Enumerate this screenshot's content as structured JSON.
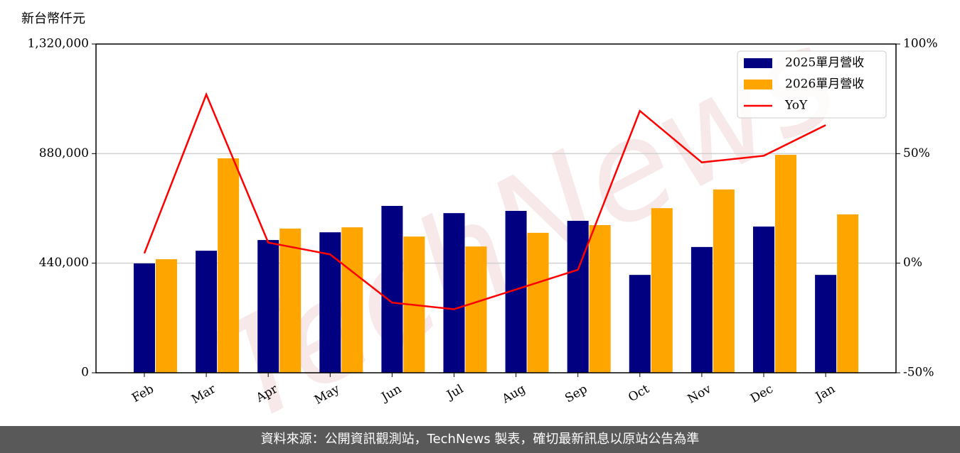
{
  "chart_data": {
    "type": "bar-line",
    "y_label": "新台幣仟元",
    "watermark": "TechNews",
    "footer": "資料來源：公開資訊觀測站，TechNews 製表，確切最新訊息以原站公告為準",
    "categories": [
      "Feb",
      "Mar",
      "Apr",
      "May",
      "Jun",
      "Jul",
      "Aug",
      "Sep",
      "Oct",
      "Nov",
      "Dec",
      "Jan"
    ],
    "series": [
      {
        "name": "2025單月營收",
        "color": "#000080",
        "kind": "bar",
        "values": [
          439000,
          490000,
          533000,
          564000,
          670000,
          641000,
          650000,
          610000,
          393000,
          505000,
          587000,
          393000
        ]
      },
      {
        "name": "2026單月營收",
        "color": "#ffa500",
        "kind": "bar",
        "values": [
          456000,
          861000,
          579000,
          584000,
          547000,
          507000,
          562000,
          593000,
          661000,
          736000,
          875000,
          636000
        ]
      },
      {
        "name": "YoY",
        "color": "#ff0000",
        "kind": "line",
        "axis": "y2",
        "values": [
          4.5,
          77,
          9.4,
          4,
          -18,
          -21,
          -12,
          -3,
          69.5,
          46,
          49,
          63
        ]
      }
    ],
    "ylim": [
      0,
      1320000
    ],
    "yticks": [
      0,
      {
        "value": 440000,
        "label": "440,000"
      },
      {
        "value": 880000,
        "label": "880,000"
      },
      {
        "value": 1320000,
        "label": "1,320,000"
      }
    ],
    "y2lim": [
      -50,
      100
    ],
    "y2ticks": [
      {
        "value": -50,
        "label": "-50%"
      },
      {
        "value": 0,
        "label": "0%"
      },
      {
        "value": 50,
        "label": "50%"
      },
      {
        "value": 100,
        "label": "100%"
      }
    ],
    "grid": true,
    "legend": "upper right"
  }
}
